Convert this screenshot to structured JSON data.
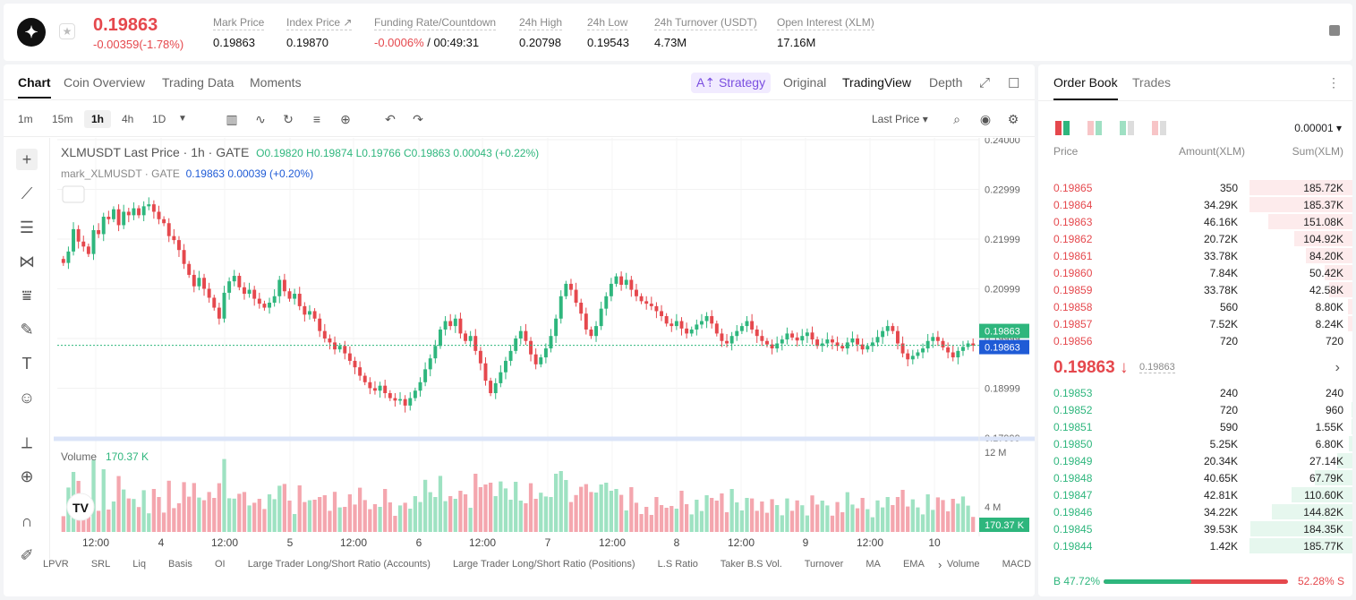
{
  "header": {
    "symbol_logo": "XLM-stellar-logo",
    "price": "0.19863",
    "change": "-0.00359(-1.78%)",
    "stats": [
      {
        "label": "Mark Price",
        "value": "0.19863"
      },
      {
        "label": "Index Price ↗",
        "value": "0.19870"
      },
      {
        "label": "Funding Rate/Countdown",
        "value_red": "-0.0006%",
        "value": "/ 00:49:31"
      },
      {
        "label": "24h High",
        "value": "0.20798"
      },
      {
        "label": "24h Low",
        "value": "0.19543"
      },
      {
        "label": "24h Turnover (USDT)",
        "value": "4.73M"
      },
      {
        "label": "Open Interest (XLM)",
        "value": "17.16M"
      }
    ]
  },
  "chart_tabs": [
    "Chart",
    "Coin Overview",
    "Trading Data",
    "Moments"
  ],
  "view_modes": {
    "strategy": "A⇡ Strategy",
    "original": "Original",
    "tradingview": "TradingView",
    "depth": "Depth"
  },
  "intervals": [
    "1m",
    "15m",
    "1h",
    "4h",
    "1D"
  ],
  "price_type": "Last Price",
  "legend": {
    "title": "XLMUSDT Last Price · 1h · GATE",
    "o": "0.19820",
    "h": "0.19874",
    "l": "0.19766",
    "c": "0.19863",
    "chg": "0.00043 (+0.22%)",
    "mark": "mark_XLMUSDT · GATE",
    "mark_val": "0.19863",
    "mark_chg": "0.00039 (+0.20%)"
  },
  "yaxis": [
    "0.24000",
    "0.22999",
    "0.21999",
    "0.20999",
    "0.19999",
    "0.18999",
    "0.17999"
  ],
  "current_price_labels": [
    "0.19863",
    "0.19863"
  ],
  "volume": {
    "label": "Volume",
    "value": "170.37 K",
    "axis": [
      "12 M",
      "4 M"
    ],
    "current": "170.37 K"
  },
  "xaxis": [
    "12:00",
    "4",
    "12:00",
    "5",
    "12:00",
    "6",
    "12:00",
    "7",
    "12:00",
    "8",
    "12:00",
    "9",
    "12:00",
    "10"
  ],
  "indicators": [
    "LPVR",
    "SRL",
    "Liq",
    "Basis",
    "OI",
    "Large Trader Long/Short Ratio (Accounts)",
    "Large Trader Long/Short Ratio (Positions)",
    "L.S Ratio",
    "Taker B.S Vol.",
    "Turnover",
    "MA",
    "EMA",
    "Volume",
    "MACD"
  ],
  "orderbook": {
    "tabs": [
      "Order Book",
      "Trades"
    ],
    "precision": "0.00001",
    "cols": [
      "Price",
      "Amount(XLM)",
      "Sum(XLM)"
    ],
    "asks": [
      [
        "0.19865",
        "350",
        "185.72K"
      ],
      [
        "0.19864",
        "34.29K",
        "185.37K"
      ],
      [
        "0.19863",
        "46.16K",
        "151.08K"
      ],
      [
        "0.19862",
        "20.72K",
        "104.92K"
      ],
      [
        "0.19861",
        "33.78K",
        "84.20K"
      ],
      [
        "0.19860",
        "7.84K",
        "50.42K"
      ],
      [
        "0.19859",
        "33.78K",
        "42.58K"
      ],
      [
        "0.19858",
        "560",
        "8.80K"
      ],
      [
        "0.19857",
        "7.52K",
        "8.24K"
      ],
      [
        "0.19856",
        "720",
        "720"
      ]
    ],
    "mid": "0.19863 ↓",
    "mid_mark": "0.19863",
    "bids": [
      [
        "0.19853",
        "240",
        "240"
      ],
      [
        "0.19852",
        "720",
        "960"
      ],
      [
        "0.19851",
        "590",
        "1.55K"
      ],
      [
        "0.19850",
        "5.25K",
        "6.80K"
      ],
      [
        "0.19849",
        "20.34K",
        "27.14K"
      ],
      [
        "0.19848",
        "40.65K",
        "67.79K"
      ],
      [
        "0.19847",
        "42.81K",
        "110.60K"
      ],
      [
        "0.19846",
        "34.22K",
        "144.82K"
      ],
      [
        "0.19845",
        "39.53K",
        "184.35K"
      ],
      [
        "0.19844",
        "1.42K",
        "185.77K"
      ]
    ],
    "buy": "B 47.72%",
    "sell": "52.28% S",
    "buy_fraction": 0.4772
  },
  "colors": {
    "up": "#2eb67d",
    "down": "#e5484d",
    "accent": "#7a4ee0",
    "mark": "#1f5bd6"
  },
  "chart_data": {
    "type": "candlestick",
    "symbol": "XLMUSDT",
    "interval": "1h",
    "ylim": [
      0.17999,
      0.24
    ],
    "closes": [
      0.2152,
      0.2175,
      0.222,
      0.2195,
      0.2185,
      0.217,
      0.2218,
      0.221,
      0.2245,
      0.224,
      0.226,
      0.2228,
      0.2255,
      0.2248,
      0.2262,
      0.2248,
      0.2266,
      0.227,
      0.2255,
      0.224,
      0.2232,
      0.2206,
      0.2198,
      0.2178,
      0.215,
      0.2128,
      0.2105,
      0.2122,
      0.21,
      0.2082,
      0.2062,
      0.204,
      0.2092,
      0.2115,
      0.2126,
      0.2103,
      0.209,
      0.2098,
      0.208,
      0.207,
      0.2062,
      0.2072,
      0.2085,
      0.2118,
      0.2095,
      0.208,
      0.209,
      0.2065,
      0.2048,
      0.2055,
      0.204,
      0.2015,
      0.2,
      0.1992,
      0.1978,
      0.1985,
      0.197,
      0.1955,
      0.1942,
      0.1925,
      0.1912,
      0.19,
      0.1895,
      0.1905,
      0.189,
      0.188,
      0.1875,
      0.1878,
      0.1865,
      0.188,
      0.1895,
      0.1912,
      0.1938,
      0.196,
      0.1985,
      0.2018,
      0.2035,
      0.2025,
      0.204,
      0.201,
      0.1995,
      0.2005,
      0.1975,
      0.195,
      0.1915,
      0.189,
      0.191,
      0.1932,
      0.1955,
      0.1975,
      0.2,
      0.2015,
      0.1995,
      0.1968,
      0.1948,
      0.1962,
      0.198,
      0.2005,
      0.204,
      0.2085,
      0.211,
      0.2098,
      0.2072,
      0.205,
      0.2018,
      0.2005,
      0.2025,
      0.206,
      0.2085,
      0.211,
      0.2125,
      0.2108,
      0.2118,
      0.2098,
      0.2085,
      0.2075,
      0.207,
      0.2065,
      0.2055,
      0.2045,
      0.203,
      0.2025,
      0.2035,
      0.202,
      0.201,
      0.2018,
      0.2028,
      0.2035,
      0.2045,
      0.203,
      0.201,
      0.1995,
      0.199,
      0.2005,
      0.2015,
      0.2025,
      0.2035,
      0.2018,
      0.2005,
      0.1995,
      0.1988,
      0.198,
      0.199,
      0.1998,
      0.201,
      0.2002,
      0.1996,
      0.2005,
      0.2012,
      0.1998,
      0.1985,
      0.199,
      0.1998,
      0.1992,
      0.1985,
      0.198,
      0.1992,
      0.2,
      0.1988,
      0.1978,
      0.1985,
      0.1992,
      0.2003,
      0.2015,
      0.2025,
      0.2015,
      0.199,
      0.197,
      0.1958,
      0.1965,
      0.1972,
      0.198,
      0.1995,
      0.2003,
      0.1995,
      0.1982,
      0.1972,
      0.1962,
      0.1975,
      0.1983,
      0.199,
      0.1986
    ]
  }
}
